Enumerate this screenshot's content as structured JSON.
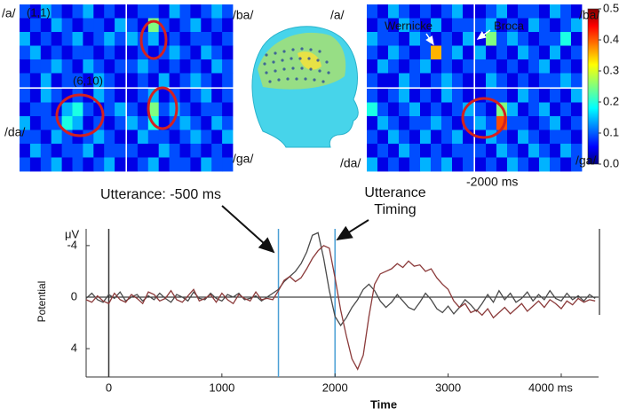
{
  "chart_data": [
    {
      "type": "heatmap",
      "quadrants": [
        {
          "label": "/a/",
          "values": [
            [
              0.1,
              0.05,
              0.15,
              0.1,
              0.05,
              0.1,
              0.15,
              0.05,
              0.1,
              0.05
            ],
            [
              0.05,
              0.1,
              0.05,
              0.15,
              0.1,
              0.05,
              0.1,
              0.1,
              0.05,
              0.15
            ],
            [
              0.15,
              0.05,
              0.1,
              0.05,
              0.1,
              0.15,
              0.05,
              0.1,
              0.15,
              0.1
            ],
            [
              0.1,
              0.15,
              0.05,
              0.1,
              0.05,
              0.1,
              0.1,
              0.05,
              0.1,
              0.05
            ],
            [
              0.05,
              0.1,
              0.1,
              0.15,
              0.1,
              0.05,
              0.15,
              0.1,
              0.05,
              0.1
            ],
            [
              0.1,
              0.05,
              0.15,
              0.05,
              0.1,
              0.1,
              0.05,
              0.15,
              0.1,
              0.05
            ]
          ]
        },
        {
          "label": "/ba/",
          "values": [
            [
              0.05,
              0.1,
              0.1,
              0.05,
              0.15,
              0.1,
              0.05,
              0.1,
              0.15,
              0.1
            ],
            [
              0.1,
              0.05,
              0.25,
              0.1,
              0.05,
              0.1,
              0.15,
              0.05,
              0.1,
              0.05
            ],
            [
              0.15,
              0.1,
              0.15,
              0.05,
              0.1,
              0.05,
              0.1,
              0.1,
              0.05,
              0.1
            ],
            [
              0.05,
              0.1,
              0.05,
              0.1,
              0.15,
              0.1,
              0.05,
              0.15,
              0.1,
              0.05
            ],
            [
              0.1,
              0.15,
              0.1,
              0.05,
              0.1,
              0.05,
              0.1,
              0.05,
              0.15,
              0.1
            ],
            [
              0.05,
              0.1,
              0.05,
              0.15,
              0.05,
              0.1,
              0.15,
              0.1,
              0.05,
              0.1
            ]
          ]
        },
        {
          "label": "/da/",
          "values": [
            [
              0.1,
              0.05,
              0.15,
              0.1,
              0.05,
              0.1,
              0.05,
              0.15,
              0.1,
              0.05
            ],
            [
              0.05,
              0.1,
              0.1,
              0.05,
              0.15,
              0.2,
              0.1,
              0.05,
              0.1,
              0.15
            ],
            [
              0.15,
              0.05,
              0.1,
              0.1,
              0.2,
              0.15,
              0.05,
              0.1,
              0.05,
              0.1
            ],
            [
              0.1,
              0.1,
              0.05,
              0.15,
              0.1,
              0.05,
              0.1,
              0.15,
              0.1,
              0.05
            ],
            [
              0.05,
              0.15,
              0.1,
              0.05,
              0.1,
              0.1,
              0.15,
              0.05,
              0.1,
              0.1
            ],
            [
              0.1,
              0.05,
              0.1,
              0.15,
              0.05,
              0.1,
              0.05,
              0.1,
              0.15,
              0.05
            ]
          ]
        },
        {
          "label": "/ga/",
          "values": [
            [
              0.05,
              0.1,
              0.15,
              0.05,
              0.1,
              0.05,
              0.1,
              0.15,
              0.05,
              0.1
            ],
            [
              0.1,
              0.05,
              0.25,
              0.1,
              0.15,
              0.1,
              0.05,
              0.1,
              0.1,
              0.05
            ],
            [
              0.15,
              0.1,
              0.2,
              0.05,
              0.1,
              0.15,
              0.1,
              0.05,
              0.15,
              0.1
            ],
            [
              0.05,
              0.15,
              0.1,
              0.1,
              0.05,
              0.1,
              0.15,
              0.1,
              0.05,
              0.15
            ],
            [
              0.1,
              0.05,
              0.05,
              0.15,
              0.1,
              0.05,
              0.1,
              0.05,
              0.1,
              0.05
            ],
            [
              0.05,
              0.1,
              0.15,
              0.05,
              0.1,
              0.1,
              0.05,
              0.15,
              0.1,
              0.1
            ]
          ]
        }
      ],
      "annotations": [
        "(1,1)",
        "(6,10)",
        "Utterance: -500 ms"
      ]
    },
    {
      "type": "heatmap",
      "quadrants": [
        {
          "label": "/a/",
          "values": [
            [
              0.1,
              0.05,
              0.15,
              0.1,
              0.05,
              0.1,
              0.05,
              0.1,
              0.15,
              0.05
            ],
            [
              0.05,
              0.1,
              0.05,
              0.15,
              0.1,
              0.05,
              0.15,
              0.05,
              0.1,
              0.1
            ],
            [
              0.15,
              0.1,
              0.1,
              0.05,
              0.15,
              0.1,
              0.05,
              0.1,
              0.05,
              0.15
            ],
            [
              0.1,
              0.05,
              0.15,
              0.1,
              0.05,
              0.1,
              0.35,
              0.1,
              0.15,
              0.05
            ],
            [
              0.05,
              0.15,
              0.1,
              0.05,
              0.1,
              0.15,
              0.05,
              0.1,
              0.05,
              0.1
            ],
            [
              0.1,
              0.05,
              0.05,
              0.15,
              0.1,
              0.05,
              0.1,
              0.15,
              0.1,
              0.05
            ]
          ]
        },
        {
          "label": "/ba/",
          "values": [
            [
              0.05,
              0.1,
              0.15,
              0.05,
              0.1,
              0.1,
              0.05,
              0.15,
              0.1,
              0.05
            ],
            [
              0.1,
              0.15,
              0.05,
              0.1,
              0.05,
              0.15,
              0.1,
              0.05,
              0.1,
              0.15
            ],
            [
              0.05,
              0.25,
              0.1,
              0.15,
              0.1,
              0.05,
              0.1,
              0.1,
              0.2,
              0.05
            ],
            [
              0.15,
              0.05,
              0.1,
              0.05,
              0.15,
              0.1,
              0.05,
              0.15,
              0.05,
              0.1
            ],
            [
              0.1,
              0.1,
              0.05,
              0.1,
              0.05,
              0.1,
              0.15,
              0.05,
              0.1,
              0.05
            ],
            [
              0.05,
              0.15,
              0.1,
              0.05,
              0.1,
              0.05,
              0.1,
              0.1,
              0.15,
              0.1
            ]
          ]
        },
        {
          "label": "/da/",
          "values": [
            [
              0.1,
              0.05,
              0.1,
              0.15,
              0.05,
              0.1,
              0.05,
              0.15,
              0.1,
              0.05
            ],
            [
              0.2,
              0.1,
              0.05,
              0.1,
              0.15,
              0.05,
              0.1,
              0.05,
              0.1,
              0.15
            ],
            [
              0.05,
              0.15,
              0.1,
              0.05,
              0.1,
              0.1,
              0.15,
              0.1,
              0.05,
              0.1
            ],
            [
              0.1,
              0.05,
              0.15,
              0.1,
              0.05,
              0.15,
              0.05,
              0.1,
              0.15,
              0.05
            ],
            [
              0.05,
              0.1,
              0.05,
              0.15,
              0.1,
              0.05,
              0.1,
              0.05,
              0.1,
              0.1
            ],
            [
              0.15,
              0.05,
              0.1,
              0.05,
              0.1,
              0.15,
              0.1,
              0.15,
              0.05,
              0.1
            ]
          ]
        },
        {
          "label": "/ga/",
          "values": [
            [
              0.05,
              0.1,
              0.1,
              0.05,
              0.15,
              0.1,
              0.05,
              0.1,
              0.05,
              0.15
            ],
            [
              0.1,
              0.05,
              0.25,
              0.15,
              0.05,
              0.1,
              0.15,
              0.05,
              0.1,
              0.05
            ],
            [
              0.15,
              0.1,
              0.4,
              0.1,
              0.1,
              0.05,
              0.1,
              0.15,
              0.05,
              0.1
            ],
            [
              0.05,
              0.15,
              0.1,
              0.05,
              0.15,
              0.1,
              0.05,
              0.1,
              0.1,
              0.05
            ],
            [
              0.1,
              0.05,
              0.15,
              0.1,
              0.05,
              0.15,
              0.1,
              0.05,
              0.15,
              0.1
            ],
            [
              0.05,
              0.1,
              0.05,
              0.15,
              0.1,
              0.05,
              0.15,
              0.1,
              0.05,
              0.1
            ]
          ]
        }
      ],
      "annotations": [
        "Wernicke",
        "Broca",
        "-2000 ms"
      ],
      "colormap": "jet",
      "clim": [
        0,
        0.5
      ],
      "cticks": [
        {
          "value": 0,
          "label": "0.0"
        },
        0.1,
        0.2,
        0.3,
        0.4,
        0.5
      ]
    },
    {
      "type": "line",
      "ylabel": "Potential",
      "yunit": "μV",
      "xlabel": "Time",
      "annotations": [
        "Utterance",
        "Timing"
      ],
      "x": [
        -200,
        -150,
        -100,
        -50,
        0,
        50,
        100,
        150,
        200,
        250,
        300,
        350,
        400,
        450,
        500,
        550,
        600,
        650,
        700,
        750,
        800,
        850,
        900,
        950,
        1000,
        1050,
        1100,
        1150,
        1200,
        1250,
        1300,
        1350,
        1400,
        1450,
        1500,
        1550,
        1600,
        1650,
        1700,
        1750,
        1800,
        1850,
        1900,
        1950,
        2000,
        2050,
        2100,
        2150,
        2200,
        2250,
        2300,
        2350,
        2400,
        2450,
        2500,
        2550,
        2600,
        2650,
        2700,
        2750,
        2800,
        2850,
        2900,
        2950,
        3000,
        3050,
        3100,
        3150,
        3200,
        3250,
        3300,
        3350,
        3400,
        3450,
        3500,
        3550,
        3600,
        3650,
        3700,
        3750,
        3800,
        3850,
        3900,
        3950,
        4000,
        4050,
        4100,
        4150,
        4200,
        4250,
        4300
      ],
      "series": [
        {
          "color": "#4a4a4a",
          "values": [
            0.1,
            -0.3,
            0.2,
            0.4,
            -0.2,
            0.1,
            -0.4,
            0.3,
            0,
            -0.2,
            0.3,
            -0.1,
            0.2,
            -0.3,
            0.1,
            0.4,
            -0.2,
            0,
            0.3,
            -0.4,
            0.1,
            0.2,
            -0.3,
            0.1,
            0.3,
            -0.2,
            0,
            -0.3,
            0.2,
            0.1,
            -0.1,
            0.3,
            0,
            -0.3,
            -0.6,
            -1.2,
            -1.6,
            -2.0,
            -2.6,
            -3.5,
            -4.8,
            -5.0,
            -3.0,
            -0.5,
            1.5,
            2.2,
            1.6,
            0.8,
            0.2,
            -0.6,
            -1.0,
            -0.5,
            0.3,
            0.8,
            0.4,
            -0.2,
            0.3,
            0.8,
            1.0,
            0.4,
            -0.3,
            0.2,
            0.9,
            1.2,
            0.7,
            1.3,
            0.8,
            0.2,
            0.6,
            1.1,
            0.5,
            -0.2,
            0.4,
            -0.5,
            0.2,
            -0.3,
            0.4,
            0.1,
            -0.4,
            0.3,
            -0.2,
            0.2,
            -0.5,
            0.1,
            0.3,
            -0.3,
            0.2,
            -0.1,
            0.3,
            -0.2,
            0.1
          ]
        },
        {
          "color": "#8b3a3a",
          "values": [
            0.2,
            0.4,
            -0.1,
            0.3,
            0.5,
            -0.3,
            0.2,
            0.4,
            -0.2,
            0.1,
            0.5,
            -0.4,
            -0.2,
            0.3,
            0.1,
            -0.5,
            0.2,
            0.4,
            -0.1,
            -0.6,
            0.3,
            0.1,
            -0.2,
            0.4,
            -0.3,
            0.2,
            0.5,
            -0.2,
            0.1,
            0.3,
            -0.4,
            0.2,
            0.1,
            0.2,
            -0.5,
            -1.3,
            -1.6,
            -1.2,
            -1.5,
            -2.2,
            -3.0,
            -3.6,
            -4.0,
            -3.8,
            -1.5,
            1.0,
            3.0,
            4.8,
            5.6,
            4.5,
            1.5,
            -1.0,
            -1.8,
            -2.0,
            -2.2,
            -2.6,
            -2.3,
            -2.8,
            -2.4,
            -2.5,
            -2.0,
            -2.2,
            -1.5,
            -1.0,
            -0.6,
            0.3,
            0.8,
            0.5,
            1.2,
            1.0,
            1.4,
            0.9,
            1.6,
            1.2,
            0.8,
            1.3,
            0.9,
            0.5,
            1.1,
            0.7,
            0.3,
            0.8,
            0.2,
            0.5,
            0.9,
            0.3,
            0.6,
            0.1,
            0.4,
            0.2,
            0.3
          ]
        }
      ],
      "markers": {
        "color": "#4a9fd5",
        "x": [
          1500,
          2000
        ]
      },
      "xlim": [
        -200,
        4330
      ],
      "xticks": [
        0,
        1000,
        2000,
        3000,
        {
          "value": 4000,
          "label": "4000 ms"
        }
      ],
      "ylim": [
        -5.3,
        6.2
      ],
      "y_inverted": true,
      "yticks": [
        -4,
        0,
        4
      ]
    }
  ]
}
